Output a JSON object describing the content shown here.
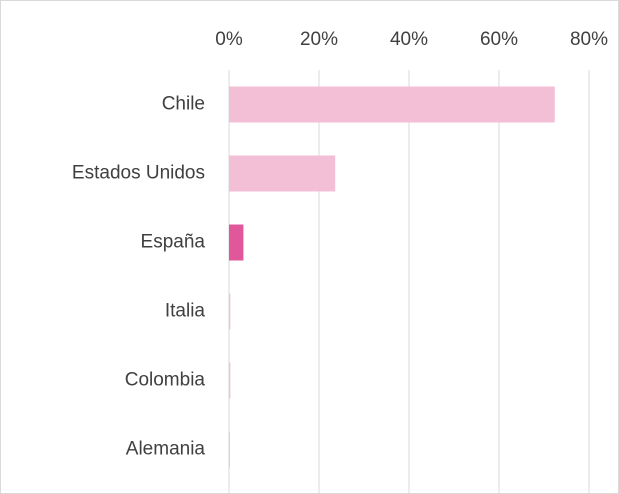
{
  "chart_data": {
    "type": "barh",
    "categories": [
      "Chile",
      "Estados Unidos",
      "España",
      "Italia",
      "Colombia",
      "Alemania"
    ],
    "values": [
      72.4,
      23.6,
      3.2,
      0.3,
      0.3,
      0.2
    ],
    "colors": [
      "#f3bfd6",
      "#f3bfd6",
      "#e0579b",
      "#f3bfd6",
      "#f3bfd6",
      "#f3bfd6"
    ],
    "xlim": [
      0,
      80
    ],
    "xticks": [
      {
        "value": 0,
        "label": "0%"
      },
      {
        "value": 20,
        "label": "20%"
      },
      {
        "value": 40,
        "label": "40%"
      },
      {
        "value": 60,
        "label": "60%"
      },
      {
        "value": 80,
        "label": "80%"
      }
    ],
    "grid": true
  }
}
